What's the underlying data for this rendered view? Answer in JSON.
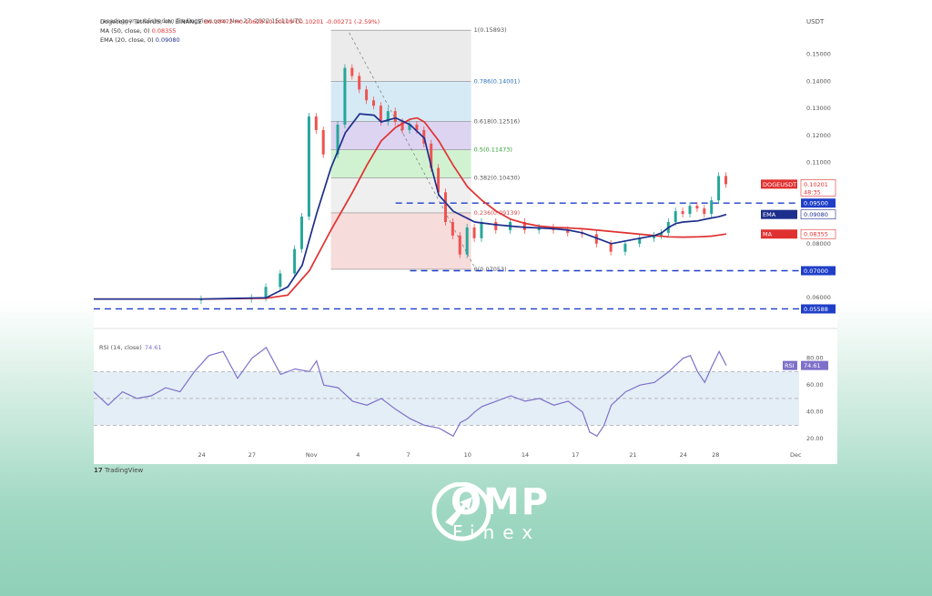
{
  "header": {
    "publisher": "ranadagger published on TradingView.com, Nov 27, 2022 15:11 UTC",
    "symbol": "Dogecoin / TetherUS, 4h, BINANCE",
    "ohlc": "O0.10472 H0.10628 L0.10109 C0.10201 -0.00271 (-2.59%)",
    "ma_label": "MA (50, close, 0)",
    "ma_value": "0.08355",
    "ema_label": "EMA (20, close, 0)",
    "ema_value": "0.09080"
  },
  "axis": {
    "currency": "USDT"
  },
  "footer": {
    "brand": "TradingView"
  },
  "watermark": {
    "name": "OMP",
    "sub": "Finex"
  },
  "colors": {
    "up": "#26a69a",
    "down": "#ef5350",
    "ema": "#1d2f8c",
    "ma": "#e03131",
    "rsi": "#7e70c9",
    "dashed": "#1f3fc8",
    "fib_gray": "#e5e5e5"
  },
  "chart_data": [
    {
      "type": "line",
      "title": "Dogecoin / TetherUS, 4h, BINANCE",
      "x_ticks": [
        "24",
        "27",
        "Nov",
        "4",
        "7",
        "10",
        "14",
        "17",
        "21",
        "24",
        "28",
        "Dec"
      ],
      "y_ticks": [
        "0.15000",
        "0.14000",
        "0.13000",
        "0.12000",
        "0.11000",
        "0.08000",
        "0.06000"
      ],
      "ylim": [
        0.052,
        0.16
      ],
      "series": [
        {
          "name": "EMA (20, close, 0)",
          "x": [
            0,
            15,
            24,
            27,
            29,
            31,
            33,
            35,
            37,
            39,
            40,
            42,
            44,
            46,
            47,
            48,
            50,
            53,
            56,
            58,
            60,
            62,
            64,
            66,
            68,
            70,
            72,
            74,
            76,
            78,
            79,
            80,
            81,
            82,
            83,
            84,
            85,
            86,
            87,
            88
          ],
          "values": [
            0.0595,
            0.0595,
            0.06,
            0.064,
            0.072,
            0.091,
            0.108,
            0.121,
            0.128,
            0.1275,
            0.125,
            0.1265,
            0.124,
            0.119,
            0.108,
            0.098,
            0.092,
            0.088,
            0.087,
            0.0865,
            0.086,
            0.0858,
            0.0855,
            0.085,
            0.084,
            0.082,
            0.08,
            0.081,
            0.082,
            0.083,
            0.084,
            0.086,
            0.0875,
            0.088,
            0.0882,
            0.0884,
            0.089,
            0.0895,
            0.09,
            0.0908
          ]
        },
        {
          "name": "MA (50, close, 0)",
          "x": [
            0,
            15,
            24,
            27,
            30,
            33,
            36,
            38,
            40,
            42,
            44,
            45,
            46,
            48,
            50,
            52,
            54,
            56,
            58,
            60,
            62,
            64,
            66,
            68,
            70,
            72,
            74,
            76,
            78,
            80,
            82,
            84,
            86,
            87,
            88
          ],
          "values": [
            0.0595,
            0.0595,
            0.0598,
            0.061,
            0.07,
            0.085,
            0.099,
            0.109,
            0.118,
            0.123,
            0.126,
            0.1265,
            0.125,
            0.118,
            0.109,
            0.101,
            0.096,
            0.092,
            0.089,
            0.0875,
            0.0865,
            0.086,
            0.0858,
            0.0855,
            0.085,
            0.0845,
            0.084,
            0.0835,
            0.083,
            0.0825,
            0.0824,
            0.0825,
            0.0828,
            0.0832,
            0.08355
          ]
        },
        {
          "name": "DOGEUSDT",
          "x": [
            0,
            15,
            22,
            24,
            26,
            28,
            29,
            30,
            31,
            32,
            34,
            35,
            36,
            37,
            38,
            39,
            40,
            41,
            42,
            43,
            44,
            45,
            46,
            47,
            48,
            49,
            50,
            51,
            52,
            53,
            54,
            56,
            58,
            60,
            62,
            64,
            66,
            68,
            70,
            72,
            74,
            76,
            78,
            79,
            80,
            81,
            82,
            83,
            84,
            85,
            86,
            87,
            88
          ],
          "values": [
            0.059,
            0.0595,
            0.06,
            0.064,
            0.069,
            0.078,
            0.09,
            0.127,
            0.122,
            0.113,
            0.124,
            0.145,
            0.142,
            0.137,
            0.133,
            0.131,
            0.125,
            0.129,
            0.125,
            0.122,
            0.124,
            0.122,
            0.117,
            0.108,
            0.099,
            0.088,
            0.083,
            0.076,
            0.086,
            0.082,
            0.088,
            0.085,
            0.088,
            0.085,
            0.086,
            0.085,
            0.084,
            0.0835,
            0.08,
            0.077,
            0.08,
            0.082,
            0.083,
            0.084,
            0.088,
            0.092,
            0.091,
            0.094,
            0.093,
            0.091,
            0.096,
            0.105,
            0.102
          ]
        }
      ],
      "fibonacci": [
        {
          "label": "1(0.15893)",
          "value": 0.15893
        },
        {
          "label": "0.786(0.14001)",
          "value": 0.14001
        },
        {
          "label": "0.618(0.12516)",
          "value": 0.12516
        },
        {
          "label": "0.5(0.11473)",
          "value": 0.11473
        },
        {
          "label": "0.382(0.10430)",
          "value": 0.1043
        },
        {
          "label": "0.236(0.09139)",
          "value": 0.09139
        },
        {
          "label": "0(0.07053)",
          "value": 0.07053
        }
      ],
      "levels": [
        {
          "label": "0.09500",
          "value": 0.095
        },
        {
          "label": "0.07000",
          "value": 0.07
        },
        {
          "label": "0.05588",
          "value": 0.05588
        }
      ],
      "price_tags": [
        {
          "name": "DOGEUSDT",
          "value": "0.10201",
          "sub": "48:35"
        },
        {
          "name": "EMA",
          "value": "0.09080"
        },
        {
          "name": "MA",
          "value": "0.08355"
        }
      ]
    },
    {
      "type": "line",
      "title": "RSI (14, close)",
      "last_value": "74.61",
      "y_ticks": [
        "80.00",
        "60.00",
        "40.00",
        "20.00"
      ],
      "ylim": [
        12,
        92
      ],
      "bands": [
        30,
        50,
        70
      ],
      "series": [
        {
          "name": "RSI (14, close)",
          "x": [
            0,
            2,
            4,
            6,
            8,
            10,
            12,
            14,
            16,
            18,
            20,
            22,
            24,
            26,
            28,
            30,
            31,
            32,
            34,
            36,
            38,
            40,
            42,
            44,
            46,
            48,
            49,
            50,
            51,
            52,
            53,
            54,
            56,
            58,
            60,
            62,
            64,
            66,
            68,
            69,
            70,
            71,
            72,
            74,
            76,
            78,
            80,
            82,
            83,
            84,
            85,
            86,
            87,
            88
          ],
          "values": [
            55,
            45,
            55,
            50,
            52,
            58,
            55,
            70,
            82,
            85,
            65,
            80,
            88,
            68,
            72,
            70,
            78,
            60,
            58,
            48,
            45,
            50,
            42,
            35,
            30,
            28,
            25,
            22,
            32,
            35,
            40,
            44,
            48,
            52,
            48,
            50,
            45,
            48,
            40,
            25,
            22,
            30,
            45,
            55,
            60,
            62,
            70,
            80,
            82,
            70,
            62,
            74,
            85,
            74.61
          ]
        }
      ]
    }
  ]
}
